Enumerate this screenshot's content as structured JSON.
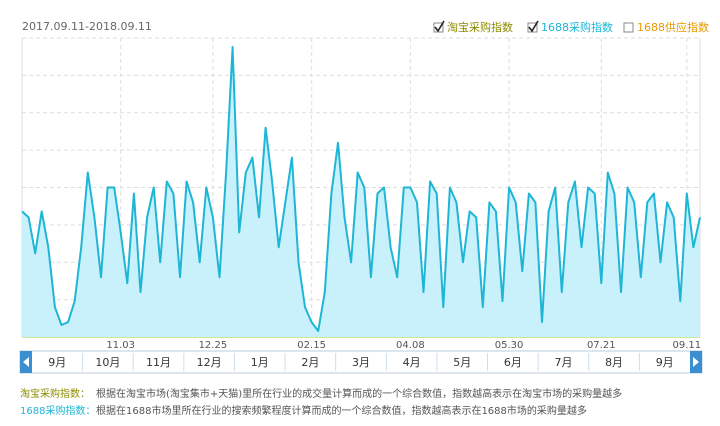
{
  "chart_data": {
    "type": "line",
    "date_range": "2017.09.11-2018.09.11",
    "legend_items": [
      {
        "name": "淘宝采购指数",
        "checked": true,
        "color": "#8c8c00"
      },
      {
        "name": "1688采购指数",
        "checked": true,
        "color": "#1fb5d6"
      },
      {
        "name": "1688供应指数",
        "checked": false,
        "color": "#e89a00"
      }
    ],
    "categories": [
      null,
      null,
      null,
      null,
      null,
      null,
      null,
      null,
      null,
      null,
      null,
      null,
      null,
      null,
      null,
      "11.03",
      null,
      null,
      null,
      null,
      null,
      null,
      null,
      null,
      null,
      null,
      null,
      null,
      null,
      "12.25",
      null,
      null,
      null,
      null,
      null,
      null,
      null,
      null,
      null,
      null,
      null,
      null,
      null,
      null,
      "02.15",
      null,
      null,
      null,
      null,
      null,
      null,
      null,
      null,
      null,
      null,
      null,
      null,
      null,
      null,
      "04.08",
      null,
      null,
      null,
      null,
      null,
      null,
      null,
      null,
      null,
      null,
      null,
      null,
      null,
      null,
      "05.30",
      null,
      null,
      null,
      null,
      null,
      null,
      null,
      null,
      null,
      null,
      null,
      null,
      null,
      "07.21",
      null,
      null,
      null,
      null,
      null,
      null,
      null,
      null,
      null,
      null,
      null,
      null,
      "09.11",
      null,
      null
    ],
    "ylim": [
      0,
      100
    ],
    "series": [
      {
        "name": "1688采购指数",
        "color": "#1fb5d6",
        "fill": "#c9f1fb",
        "values": [
          42,
          40,
          28,
          42,
          30,
          10,
          4,
          5,
          12,
          30,
          55,
          40,
          20,
          50,
          50,
          35,
          18,
          48,
          15,
          40,
          50,
          25,
          52,
          48,
          20,
          52,
          45,
          25,
          50,
          40,
          20,
          55,
          97,
          35,
          55,
          60,
          40,
          70,
          52,
          30,
          45,
          60,
          25,
          10,
          5,
          2,
          15,
          48,
          65,
          40,
          25,
          55,
          50,
          20,
          48,
          50,
          30,
          20,
          50,
          50,
          45,
          15,
          52,
          48,
          10,
          50,
          45,
          25,
          42,
          40,
          10,
          45,
          42,
          12,
          50,
          45,
          22,
          48,
          45,
          5,
          42,
          50,
          15,
          45,
          52,
          30,
          50,
          48,
          18,
          55,
          48,
          15,
          50,
          45,
          20,
          45,
          48,
          25,
          45,
          40,
          12,
          48,
          30,
          40
        ]
      }
    ],
    "months": [
      "9月",
      "10月",
      "11月",
      "12月",
      "1月",
      "2月",
      "3月",
      "4月",
      "5月",
      "6月",
      "7月",
      "8月",
      "9月"
    ],
    "descriptions": [
      {
        "label": "淘宝采购指数：",
        "text": "根据在淘宝市场(淘宝集市+天猫)里所在行业的成交量计算而成的一个综合数值，指数越高表示在淘宝市场的采购量越多"
      },
      {
        "label": "1688采购指数：",
        "text": "根据在1688市场里所在行业的搜索频繁程度计算而成的一个综合数值，指数越高表示在1688市场的采购量越多"
      }
    ]
  }
}
